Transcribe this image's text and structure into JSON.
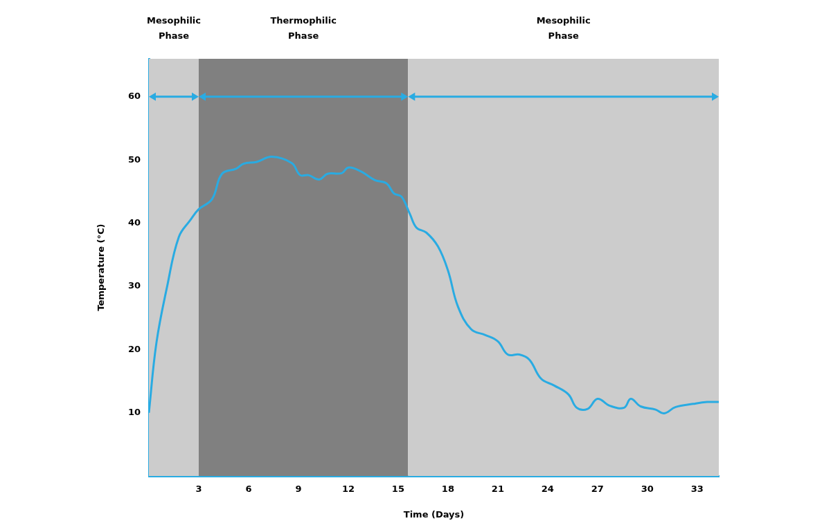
{
  "chart_data": {
    "type": "line",
    "x_label": "Time (Days)",
    "y_label": "Temperature (°C)",
    "color": "#29abe2",
    "grid": false,
    "x": [
      0,
      0.45,
      1.1,
      1.8,
      2.5,
      3,
      3.8,
      4.4,
      5.25,
      5.7,
      6.5,
      7.4,
      8.6,
      9.1,
      9.6,
      10.25,
      10.75,
      11.6,
      12,
      12.75,
      13.6,
      14.3,
      14.75,
      15.2,
      15.7,
      16.1,
      16.7,
      17.4,
      18,
      18.6,
      19.4,
      20.25,
      21,
      21.6,
      22.3,
      22.9,
      23.6,
      24.4,
      25.25,
      25.75,
      26.4,
      27,
      27.75,
      28.6,
      29,
      29.6,
      30.5,
      31,
      31.7,
      32.75,
      33.6,
      34.3
    ],
    "values": [
      10,
      21,
      30,
      37.8,
      40.5,
      42.2,
      43.8,
      47.8,
      48.6,
      49.4,
      49.7,
      50.5,
      49.5,
      47.6,
      47.6,
      46.9,
      47.8,
      47.9,
      48.8,
      48.2,
      46.8,
      46.3,
      44.7,
      44.2,
      41.5,
      39.3,
      38.5,
      36.3,
      32.5,
      26.8,
      23.2,
      22.3,
      21.3,
      19.2,
      19.2,
      18.4,
      15.4,
      14.3,
      12.9,
      10.8,
      10.6,
      12.2,
      11.1,
      10.8,
      12.2,
      11,
      10.5,
      9.9,
      10.9,
      11.4,
      11.7,
      11.7
    ],
    "xlim": [
      0,
      34.3
    ],
    "xticks": [
      3,
      6,
      9,
      12,
      15,
      18,
      21,
      24,
      27,
      30,
      33
    ],
    "ylim": [
      0,
      66
    ],
    "yticks": [
      10,
      20,
      30,
      40,
      50,
      60
    ],
    "phase_arrow_y": 60,
    "phases": [
      {
        "label": "Mesophilic Phase",
        "start": 0,
        "end": 3,
        "color": "#cccccc"
      },
      {
        "label": "Thermophilic Phase",
        "start": 3,
        "end": 15.6,
        "color": "#808080"
      },
      {
        "label": "Mesophilic Phase",
        "start": 15.6,
        "end": 34.3,
        "color": "#cccccc"
      }
    ]
  }
}
